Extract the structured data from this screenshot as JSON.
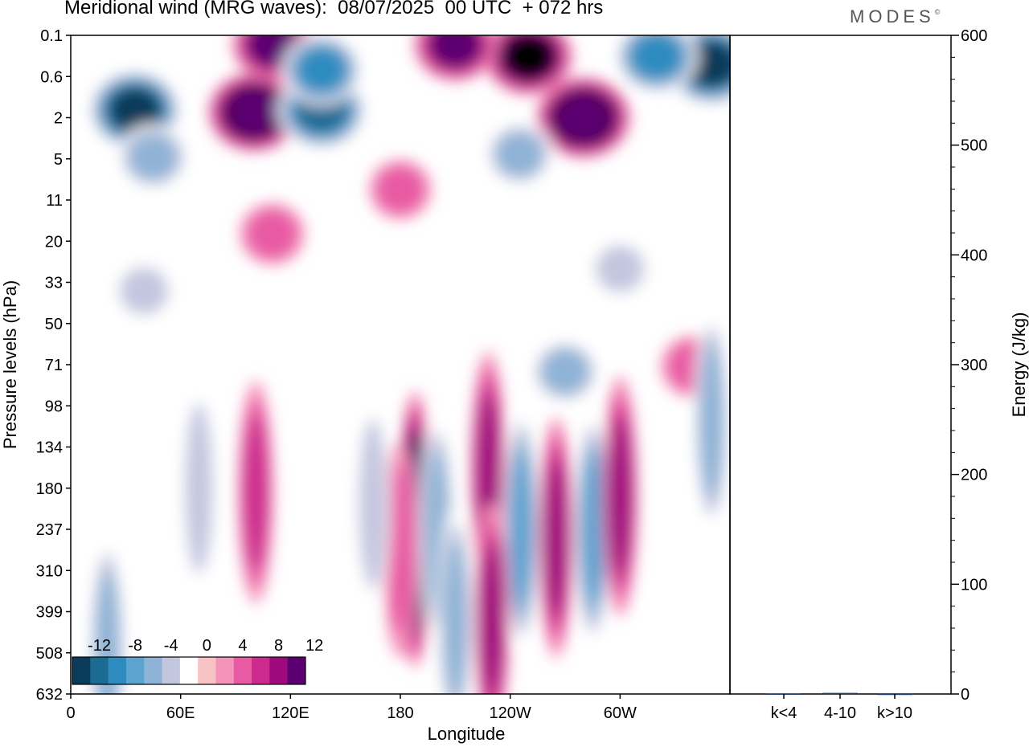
{
  "title": "Meridional wind (MRG waves):  08/07/2025  00 UTC  + 072 hrs",
  "logo": "MODES",
  "chart_data": [
    {
      "type": "heatmap",
      "title": "Meridional wind (MRG waves):  08/07/2025  00 UTC  + 072 hrs",
      "xlabel": "Longitude",
      "ylabel": "Pressure levels (hPa)",
      "x_ticks": [
        "0",
        "60E",
        "120E",
        "180",
        "120W",
        "60W"
      ],
      "x_range_deg": [
        0,
        360
      ],
      "y_ticks": [
        0.1,
        0.6,
        2,
        5,
        11,
        20,
        33,
        50,
        71,
        98,
        134,
        180,
        237,
        310,
        399,
        508,
        632
      ],
      "colorbar": {
        "tick_labels": [
          "-12",
          "-8",
          "-4",
          "0",
          "4",
          "8",
          "12"
        ],
        "levels": [
          -14,
          -12,
          -10,
          -8,
          -6,
          -4,
          -2,
          2,
          4,
          6,
          8,
          10,
          12,
          14
        ],
        "colors": [
          "#0b3b5a",
          "#1b6b93",
          "#2e8bbf",
          "#5ca3cf",
          "#8fb3d6",
          "#c3c6df",
          "#ffffff",
          "#f8c3c4",
          "#f594bb",
          "#e85aa4",
          "#cc2a8d",
          "#9e0a7d",
          "#5c0071"
        ]
      },
      "features": [
        {
          "lon": 188,
          "p": 237,
          "value": 14
        },
        {
          "lon": 200,
          "p": 237,
          "value": -6
        },
        {
          "lon": 180,
          "p": 270,
          "value": 4
        },
        {
          "lon": 228,
          "p": 160,
          "value": 8
        },
        {
          "lon": 246,
          "p": 237,
          "value": -8
        },
        {
          "lon": 265,
          "p": 250,
          "value": 8
        },
        {
          "lon": 285,
          "p": 237,
          "value": -7
        },
        {
          "lon": 300,
          "p": 190,
          "value": 8
        },
        {
          "lon": 230,
          "p": 420,
          "value": 7
        },
        {
          "lon": 210,
          "p": 420,
          "value": -6
        },
        {
          "lon": 101,
          "p": 185,
          "value": 5
        },
        {
          "lon": 35,
          "p": 1.6,
          "value": -13
        },
        {
          "lon": 100,
          "p": 1.7,
          "value": 13
        },
        {
          "lon": 280,
          "p": 2,
          "value": 14
        },
        {
          "lon": 350,
          "p": 0.35,
          "value": -14
        },
        {
          "lon": 110,
          "p": 0.15,
          "value": 9
        },
        {
          "lon": 250,
          "p": 0.25,
          "value": 12
        },
        {
          "lon": 210,
          "p": 0.15,
          "value": 10
        },
        {
          "lon": 137,
          "p": 1.6,
          "value": -12
        },
        {
          "lon": 137,
          "p": 0.45,
          "value": -9
        },
        {
          "lon": 320,
          "p": 0.25,
          "value": -10
        },
        {
          "lon": 45,
          "p": 4.8,
          "value": -6
        },
        {
          "lon": 40,
          "p": 36,
          "value": -3
        },
        {
          "lon": 300,
          "p": 28,
          "value": -3
        },
        {
          "lon": 110,
          "p": 18,
          "value": 4
        },
        {
          "lon": 180,
          "p": 9,
          "value": 3
        },
        {
          "lon": 245,
          "p": 4.5,
          "value": -5
        },
        {
          "lon": 340,
          "p": 72,
          "value": 4
        },
        {
          "lon": 270,
          "p": 75,
          "value": -5
        },
        {
          "lon": 350,
          "p": 110,
          "value": -5
        },
        {
          "lon": 70,
          "p": 180,
          "value": -4
        },
        {
          "lon": 165,
          "p": 200,
          "value": -4
        },
        {
          "lon": 20,
          "p": 500,
          "value": -6
        }
      ]
    },
    {
      "type": "bar",
      "categories": [
        "k<4",
        "4-10",
        "k>10"
      ],
      "values": [
        0.4,
        1.0,
        0.2
      ],
      "ylabel": "Energy (J/kg)",
      "ylim": [
        0,
        600
      ],
      "y_ticks": [
        0,
        100,
        200,
        300,
        400,
        500,
        600
      ],
      "colors": [
        "#1f3a6e",
        "#1f3a6e",
        "#1f3a6e"
      ]
    }
  ]
}
